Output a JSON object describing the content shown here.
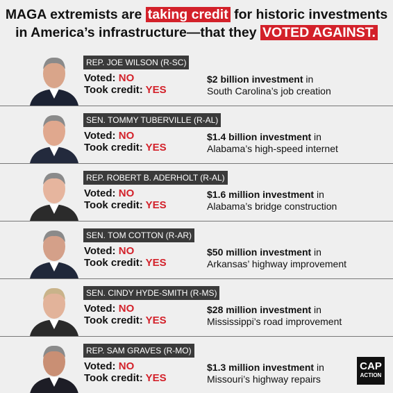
{
  "header": {
    "line1": {
      "before": "MAGA extremists are ",
      "highlight": "taking credit",
      "after": " for historic investments"
    },
    "line2": {
      "before": "in America’s infrastructure—that they ",
      "highlight": "VOTED AGAINST."
    }
  },
  "rows": [
    {
      "name": "REP. JOE WILSON (R-SC)",
      "voted_label": "Voted:",
      "voted_value": "NO",
      "credit_label": "Took credit:",
      "credit_value": "YES",
      "investment_bold": "$2 billion investment",
      "investment_in": " in",
      "investment_purpose": "South Carolina’s job creation"
    },
    {
      "name": "SEN. TOMMY TUBERVILLE (R-AL)",
      "voted_label": "Voted:",
      "voted_value": "NO",
      "credit_label": "Took credit:",
      "credit_value": "YES",
      "investment_bold": "$1.4 billion investment",
      "investment_in": " in",
      "investment_purpose": "Alabama’s high-speed internet"
    },
    {
      "name": "REP. ROBERT B. ADERHOLT (R-AL)",
      "voted_label": "Voted:",
      "voted_value": "NO",
      "credit_label": "Took credit:",
      "credit_value": "YES",
      "investment_bold": "$1.6 million investment",
      "investment_in": " in",
      "investment_purpose": "Alabama’s bridge construction"
    },
    {
      "name": "SEN. TOM COTTON (R-AR)",
      "voted_label": "Voted:",
      "voted_value": "NO",
      "credit_label": "Took credit:",
      "credit_value": "YES",
      "investment_bold": "$50 million investment",
      "investment_in": " in",
      "investment_purpose": "Arkansas’ highway improvement"
    },
    {
      "name": "SEN. CINDY HYDE-SMITH (R-MS)",
      "voted_label": "Voted:",
      "voted_value": "NO",
      "credit_label": "Took credit:",
      "credit_value": "YES",
      "investment_bold": "$28 million investment",
      "investment_in": " in",
      "investment_purpose": "Mississippi’s road improvement"
    },
    {
      "name": "REP. SAM GRAVES (R-MO)",
      "voted_label": "Voted:",
      "voted_value": "NO",
      "credit_label": "Took credit:",
      "credit_value": "YES",
      "investment_bold": "$1.3 million investment",
      "investment_in": " in",
      "investment_purpose": "Missouri’s highway repairs"
    }
  ],
  "logo": {
    "line1": "CAP",
    "line2": "ACTION"
  }
}
